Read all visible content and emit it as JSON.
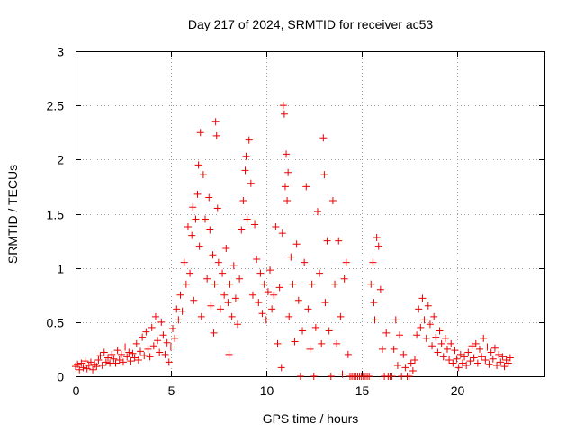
{
  "chart_data": {
    "type": "scatter",
    "title": "Day 217 of 2024, SRMTID for receiver ac53",
    "xlabel": "GPS time / hours",
    "ylabel": "SRMTID / TECUs",
    "xlim": [
      0,
      24.6
    ],
    "ylim": [
      0,
      3
    ],
    "xticks": [
      0,
      5,
      10,
      15,
      20
    ],
    "xtick_labels": [
      "0",
      "5",
      "10",
      "15",
      "20"
    ],
    "yticks": [
      0,
      0.5,
      1,
      1.5,
      2,
      2.5,
      3
    ],
    "ytick_labels": [
      "0",
      "0.5",
      "1",
      "1.5",
      "2",
      "2.5",
      "3"
    ],
    "grid": true,
    "marker": "+",
    "series_color": "#ee0000",
    "series": [
      {
        "name": "SRMTID",
        "points": [
          [
            0.0,
            0.09
          ],
          [
            0.1,
            0.11
          ],
          [
            0.2,
            0.06
          ],
          [
            0.3,
            0.12
          ],
          [
            0.4,
            0.08
          ],
          [
            0.5,
            0.14
          ],
          [
            0.6,
            0.07
          ],
          [
            0.7,
            0.1
          ],
          [
            0.8,
            0.13
          ],
          [
            0.9,
            0.06
          ],
          [
            1.0,
            0.11
          ],
          [
            1.1,
            0.09
          ],
          [
            1.2,
            0.15
          ],
          [
            1.3,
            0.19
          ],
          [
            1.4,
            0.1
          ],
          [
            1.5,
            0.22
          ],
          [
            1.6,
            0.13
          ],
          [
            1.7,
            0.17
          ],
          [
            1.8,
            0.12
          ],
          [
            1.9,
            0.2
          ],
          [
            2.0,
            0.16
          ],
          [
            2.1,
            0.12
          ],
          [
            2.2,
            0.24
          ],
          [
            2.3,
            0.15
          ],
          [
            2.4,
            0.2
          ],
          [
            2.5,
            0.13
          ],
          [
            2.6,
            0.27
          ],
          [
            2.7,
            0.18
          ],
          [
            2.8,
            0.22
          ],
          [
            2.9,
            0.14
          ],
          [
            3.0,
            0.21
          ],
          [
            3.1,
            0.17
          ],
          [
            3.2,
            0.3
          ],
          [
            3.3,
            0.15
          ],
          [
            3.4,
            0.23
          ],
          [
            3.5,
            0.36
          ],
          [
            3.6,
            0.19
          ],
          [
            3.7,
            0.41
          ],
          [
            3.8,
            0.25
          ],
          [
            3.9,
            0.18
          ],
          [
            4.0,
            0.45
          ],
          [
            4.1,
            0.28
          ],
          [
            4.2,
            0.55
          ],
          [
            4.3,
            0.33
          ],
          [
            4.4,
            0.22
          ],
          [
            4.5,
            0.5
          ],
          [
            4.6,
            0.38
          ],
          [
            4.7,
            0.2
          ],
          [
            4.8,
            0.31
          ],
          [
            4.9,
            0.13
          ],
          [
            5.0,
            0.27
          ],
          [
            5.1,
            0.44
          ],
          [
            5.2,
            0.35
          ],
          [
            5.3,
            0.62
          ],
          [
            5.4,
            0.52
          ],
          [
            5.5,
            0.75
          ],
          [
            5.6,
            0.6
          ],
          [
            5.7,
            1.05
          ],
          [
            5.8,
            0.85
          ],
          [
            5.9,
            1.38
          ],
          [
            6.0,
            0.95
          ],
          [
            6.1,
            1.3
          ],
          [
            6.15,
            1.56
          ],
          [
            6.2,
            0.7
          ],
          [
            6.3,
            1.45
          ],
          [
            6.4,
            1.68
          ],
          [
            6.45,
            1.95
          ],
          [
            6.5,
            1.2
          ],
          [
            6.55,
            2.25
          ],
          [
            6.6,
            0.55
          ],
          [
            6.7,
            1.86
          ],
          [
            6.8,
            1.45
          ],
          [
            6.9,
            0.9
          ],
          [
            7.0,
            1.65
          ],
          [
            7.05,
            1.35
          ],
          [
            7.1,
            0.65
          ],
          [
            7.2,
            1.12
          ],
          [
            7.25,
            0.4
          ],
          [
            7.3,
            0.85
          ],
          [
            7.35,
            2.35
          ],
          [
            7.4,
            2.22
          ],
          [
            7.45,
            1.55
          ],
          [
            7.5,
            1.05
          ],
          [
            7.6,
            0.62
          ],
          [
            7.7,
            0.95
          ],
          [
            7.8,
            0.75
          ],
          [
            7.9,
            1.18
          ],
          [
            8.0,
            0.68
          ],
          [
            8.05,
            0.2
          ],
          [
            8.1,
            0.85
          ],
          [
            8.2,
            0.55
          ],
          [
            8.3,
            1.02
          ],
          [
            8.4,
            0.72
          ],
          [
            8.5,
            0.48
          ],
          [
            8.6,
            0.9
          ],
          [
            8.7,
            1.35
          ],
          [
            8.8,
            1.62
          ],
          [
            8.9,
            1.9
          ],
          [
            8.95,
            2.03
          ],
          [
            9.0,
            1.45
          ],
          [
            9.1,
            2.18
          ],
          [
            9.2,
            1.78
          ],
          [
            9.3,
            0.75
          ],
          [
            9.4,
            1.4
          ],
          [
            9.5,
            1.08
          ],
          [
            9.6,
            0.68
          ],
          [
            9.7,
            0.95
          ],
          [
            9.8,
            0.58
          ],
          [
            9.9,
            0.85
          ],
          [
            10.0,
            0.52
          ],
          [
            10.1,
            0.78
          ],
          [
            10.2,
            0.98
          ],
          [
            10.3,
            0.62
          ],
          [
            10.4,
            0.75
          ],
          [
            10.5,
            1.38
          ],
          [
            10.6,
            0.3
          ],
          [
            10.7,
            0.82
          ],
          [
            10.8,
            0.08
          ],
          [
            10.85,
            1.32
          ],
          [
            10.9,
            2.5
          ],
          [
            10.95,
            2.42
          ],
          [
            11.0,
            1.75
          ],
          [
            11.05,
            2.05
          ],
          [
            11.1,
            1.62
          ],
          [
            11.15,
            1.88
          ],
          [
            11.2,
            0.55
          ],
          [
            11.3,
            1.1
          ],
          [
            11.4,
            0.85
          ],
          [
            11.5,
            0.32
          ],
          [
            11.6,
            1.22
          ],
          [
            11.7,
            0.7
          ],
          [
            11.8,
            0.0
          ],
          [
            11.9,
            0.42
          ],
          [
            12.0,
            1.05
          ],
          [
            12.1,
            1.75
          ],
          [
            12.2,
            0.62
          ],
          [
            12.3,
            0.25
          ],
          [
            12.4,
            0.85
          ],
          [
            12.5,
            0.0
          ],
          [
            12.6,
            0.45
          ],
          [
            12.7,
            1.52
          ],
          [
            12.8,
            0.95
          ],
          [
            12.9,
            0.3
          ],
          [
            13.0,
            2.2
          ],
          [
            13.05,
            1.86
          ],
          [
            13.1,
            0.68
          ],
          [
            13.2,
            1.25
          ],
          [
            13.3,
            0.42
          ],
          [
            13.4,
            0.0
          ],
          [
            13.5,
            1.62
          ],
          [
            13.6,
            0.85
          ],
          [
            13.7,
            0.3
          ],
          [
            13.8,
            1.25
          ],
          [
            13.9,
            0.55
          ],
          [
            14.0,
            0.02
          ],
          [
            14.1,
            0.9
          ],
          [
            14.2,
            1.05
          ],
          [
            14.3,
            0.2
          ],
          [
            14.4,
            0.0
          ],
          [
            14.5,
            0.0
          ],
          [
            14.6,
            0.0
          ],
          [
            14.7,
            0.0
          ],
          [
            14.8,
            0.0
          ],
          [
            14.9,
            0.0
          ],
          [
            15.0,
            0.0
          ],
          [
            15.1,
            0.0
          ],
          [
            15.2,
            0.0
          ],
          [
            15.3,
            0.0
          ],
          [
            15.4,
            0.0
          ],
          [
            15.5,
            0.85
          ],
          [
            15.6,
            1.05
          ],
          [
            15.65,
            0.68
          ],
          [
            15.7,
            0.52
          ],
          [
            15.8,
            1.28
          ],
          [
            15.9,
            1.2
          ],
          [
            16.0,
            0.8
          ],
          [
            16.1,
            0.25
          ],
          [
            16.2,
            0.0
          ],
          [
            16.3,
            0.4
          ],
          [
            16.4,
            0.0
          ],
          [
            16.5,
            0.0
          ],
          [
            16.6,
            0.0
          ],
          [
            16.7,
            0.25
          ],
          [
            16.8,
            0.52
          ],
          [
            16.9,
            0.1
          ],
          [
            17.0,
            0.38
          ],
          [
            17.1,
            0.0
          ],
          [
            17.2,
            0.2
          ],
          [
            17.3,
            0.08
          ],
          [
            17.4,
            0.0
          ],
          [
            17.5,
            0.0
          ],
          [
            17.6,
            0.12
          ],
          [
            17.7,
            0.05
          ],
          [
            17.8,
            0.15
          ],
          [
            17.9,
            0.38
          ],
          [
            18.0,
            0.62
          ],
          [
            18.1,
            0.45
          ],
          [
            18.2,
            0.72
          ],
          [
            18.3,
            0.52
          ],
          [
            18.4,
            0.35
          ],
          [
            18.5,
            0.65
          ],
          [
            18.6,
            0.48
          ],
          [
            18.7,
            0.28
          ],
          [
            18.8,
            0.55
          ],
          [
            18.9,
            0.36
          ],
          [
            19.0,
            0.22
          ],
          [
            19.1,
            0.42
          ],
          [
            19.2,
            0.3
          ],
          [
            19.3,
            0.18
          ],
          [
            19.4,
            0.35
          ],
          [
            19.5,
            0.25
          ],
          [
            19.6,
            0.15
          ],
          [
            19.7,
            0.3
          ],
          [
            19.8,
            0.12
          ],
          [
            19.9,
            0.24
          ],
          [
            20.0,
            0.16
          ],
          [
            20.1,
            0.08
          ],
          [
            20.2,
            0.2
          ],
          [
            20.3,
            0.12
          ],
          [
            20.4,
            0.18
          ],
          [
            20.5,
            0.1
          ],
          [
            20.6,
            0.22
          ],
          [
            20.7,
            0.14
          ],
          [
            20.8,
            0.28
          ],
          [
            20.9,
            0.17
          ],
          [
            21.0,
            0.3
          ],
          [
            21.1,
            0.12
          ],
          [
            21.2,
            0.25
          ],
          [
            21.3,
            0.18
          ],
          [
            21.4,
            0.35
          ],
          [
            21.5,
            0.15
          ],
          [
            21.6,
            0.27
          ],
          [
            21.7,
            0.11
          ],
          [
            21.8,
            0.22
          ],
          [
            21.9,
            0.16
          ],
          [
            22.0,
            0.26
          ],
          [
            22.1,
            0.1
          ],
          [
            22.2,
            0.2
          ],
          [
            22.3,
            0.13
          ],
          [
            22.4,
            0.18
          ],
          [
            22.5,
            0.09
          ],
          [
            22.6,
            0.15
          ],
          [
            22.7,
            0.12
          ],
          [
            22.8,
            0.17
          ]
        ]
      }
    ]
  }
}
